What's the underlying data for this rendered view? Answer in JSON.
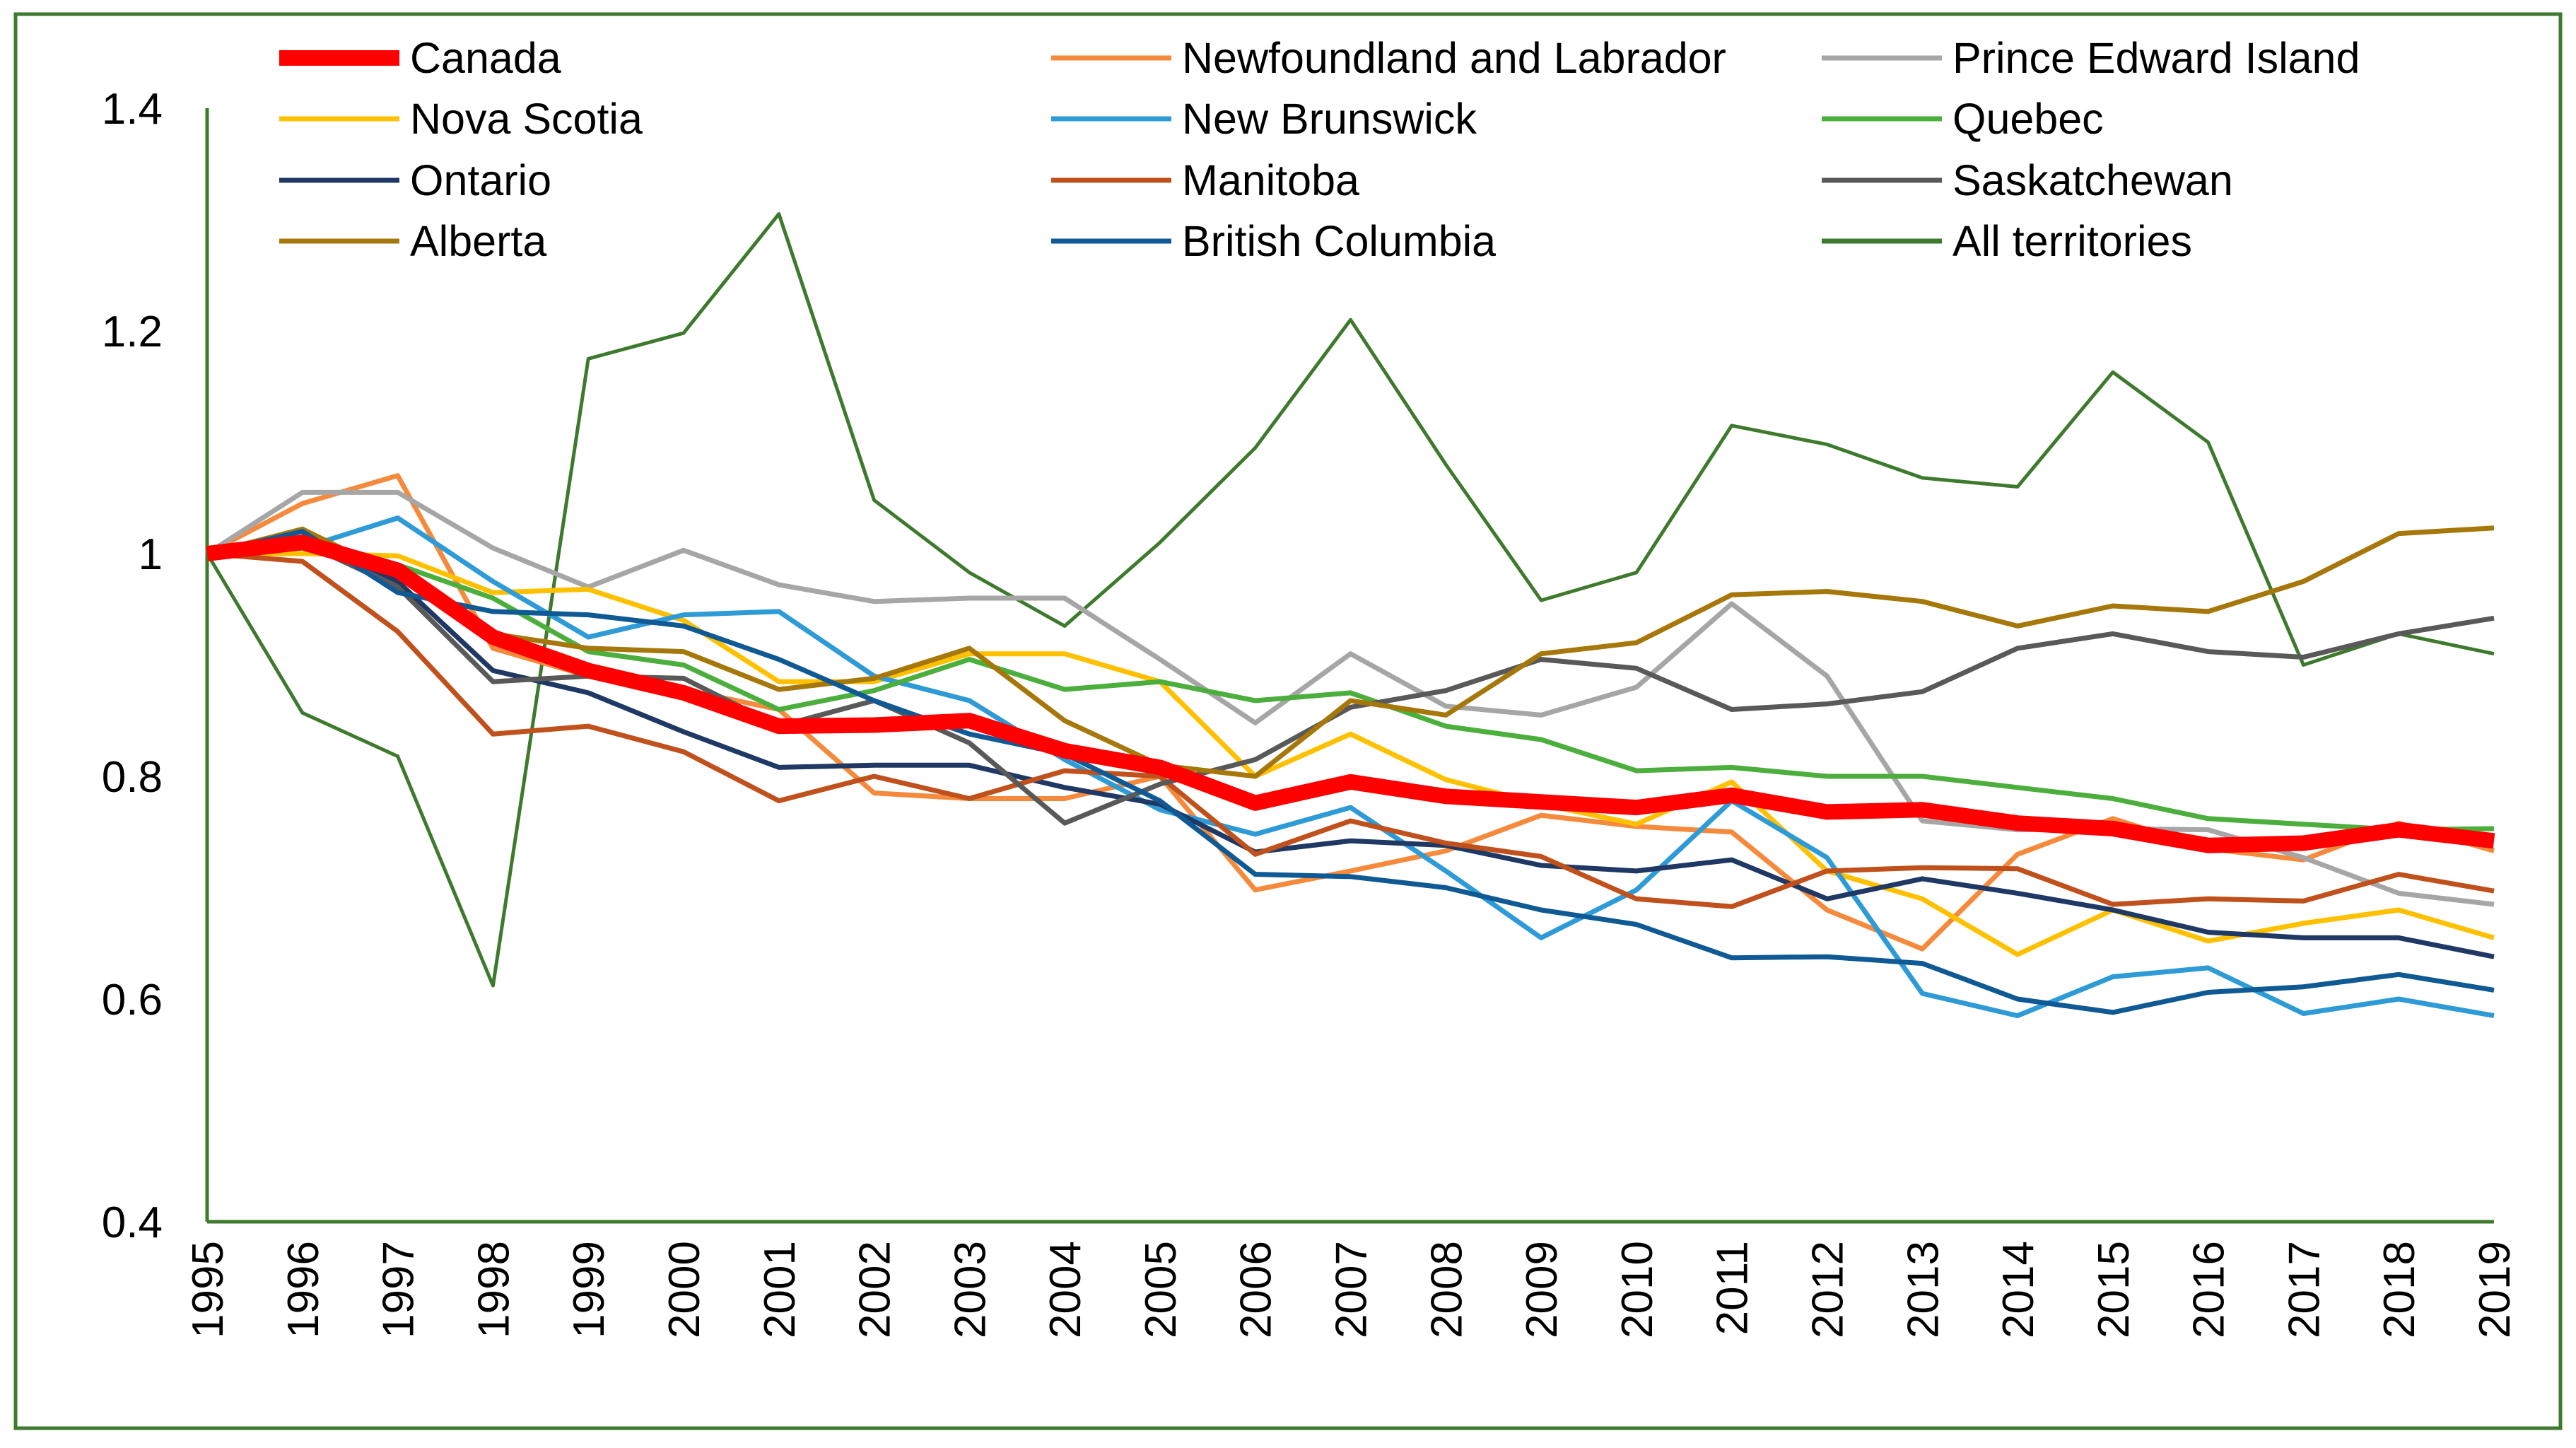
{
  "chart_data": {
    "type": "line",
    "title": "",
    "xlabel": "",
    "ylabel": "",
    "ylim": [
      0.4,
      1.4
    ],
    "yticks": [
      "0.4",
      "0.6",
      "0.8",
      "1",
      "1.2",
      "1.4"
    ],
    "grid": false,
    "legend_position": "top",
    "frame_color": "#3E7A2E",
    "axis_color": "#3E7A2E",
    "x": [
      "1995",
      "1996",
      "1997",
      "1998",
      "1999",
      "2000",
      "2001",
      "2002",
      "2003",
      "2004",
      "2005",
      "2006",
      "2007",
      "2008",
      "2009",
      "2010",
      "2011",
      "2012",
      "2013",
      "2014",
      "2015",
      "2016",
      "2017",
      "2018",
      "2019"
    ],
    "series": [
      {
        "name": "Canada",
        "color": "#FF0000",
        "width": 22,
        "values": [
          1.0,
          1.01,
          0.985,
          0.925,
          0.895,
          0.875,
          0.845,
          0.846,
          0.85,
          0.823,
          0.808,
          0.776,
          0.795,
          0.782,
          0.777,
          0.772,
          0.783,
          0.768,
          0.77,
          0.758,
          0.753,
          0.738,
          0.74,
          0.752,
          0.742
        ]
      },
      {
        "name": "Newfoundland and Labrador",
        "color": "#F58A3C",
        "width": 7,
        "values": [
          1.0,
          1.045,
          1.07,
          0.915,
          0.89,
          0.878,
          0.86,
          0.785,
          0.78,
          0.78,
          0.8,
          0.698,
          0.715,
          0.733,
          0.765,
          0.755,
          0.75,
          0.68,
          0.645,
          0.73,
          0.762,
          0.735,
          0.725,
          0.758,
          0.733
        ]
      },
      {
        "name": "Prince Edward Island",
        "color": "#A6A6A6",
        "width": 7,
        "values": [
          1.0,
          1.055,
          1.055,
          1.005,
          0.97,
          1.003,
          0.972,
          0.957,
          0.96,
          0.96,
          0.905,
          0.848,
          0.91,
          0.863,
          0.855,
          0.88,
          0.955,
          0.89,
          0.76,
          0.752,
          0.753,
          0.752,
          0.727,
          0.695,
          0.685
        ]
      },
      {
        "name": "Nova Scotia",
        "color": "#FFC000",
        "width": 7,
        "values": [
          1.0,
          1.0,
          0.998,
          0.965,
          0.968,
          0.94,
          0.885,
          0.885,
          0.91,
          0.91,
          0.885,
          0.8,
          0.838,
          0.797,
          0.775,
          0.757,
          0.795,
          0.715,
          0.69,
          0.64,
          0.68,
          0.652,
          0.668,
          0.68,
          0.655
        ]
      },
      {
        "name": "New Brunswick",
        "color": "#2E9BD6",
        "width": 7,
        "values": [
          1.0,
          1.005,
          1.032,
          0.975,
          0.925,
          0.945,
          0.948,
          0.89,
          0.868,
          0.815,
          0.77,
          0.748,
          0.772,
          0.715,
          0.655,
          0.698,
          0.778,
          0.727,
          0.605,
          0.585,
          0.62,
          0.628,
          0.587,
          0.6,
          0.585
        ]
      },
      {
        "name": "Quebec",
        "color": "#4CAF3D",
        "width": 7,
        "values": [
          1.0,
          1.005,
          0.99,
          0.96,
          0.912,
          0.9,
          0.86,
          0.877,
          0.905,
          0.878,
          0.885,
          0.868,
          0.875,
          0.845,
          0.833,
          0.805,
          0.808,
          0.8,
          0.8,
          0.79,
          0.78,
          0.762,
          0.757,
          0.752,
          0.753
        ]
      },
      {
        "name": "Ontario",
        "color": "#1F3864",
        "width": 7,
        "values": [
          1.0,
          1.015,
          0.975,
          0.895,
          0.875,
          0.84,
          0.808,
          0.81,
          0.81,
          0.79,
          0.775,
          0.732,
          0.742,
          0.738,
          0.72,
          0.715,
          0.725,
          0.69,
          0.708,
          0.695,
          0.68,
          0.66,
          0.655,
          0.655,
          0.638
        ]
      },
      {
        "name": "Manitoba",
        "color": "#C0501C",
        "width": 7,
        "values": [
          1.0,
          0.993,
          0.93,
          0.838,
          0.845,
          0.822,
          0.778,
          0.8,
          0.78,
          0.805,
          0.8,
          0.73,
          0.76,
          0.74,
          0.728,
          0.69,
          0.683,
          0.715,
          0.718,
          0.717,
          0.685,
          0.69,
          0.688,
          0.712,
          0.697
        ]
      },
      {
        "name": "Saskatchewan",
        "color": "#595959",
        "width": 7,
        "values": [
          1.0,
          1.01,
          0.97,
          0.885,
          0.89,
          0.888,
          0.845,
          0.868,
          0.83,
          0.758,
          0.793,
          0.815,
          0.862,
          0.877,
          0.905,
          0.897,
          0.86,
          0.865,
          0.876,
          0.915,
          0.928,
          0.912,
          0.907,
          0.928,
          0.942
        ]
      },
      {
        "name": "Alberta",
        "color": "#A6780B",
        "width": 7,
        "values": [
          1.0,
          1.022,
          0.98,
          0.928,
          0.915,
          0.912,
          0.878,
          0.888,
          0.915,
          0.85,
          0.81,
          0.8,
          0.868,
          0.855,
          0.91,
          0.92,
          0.963,
          0.966,
          0.957,
          0.935,
          0.953,
          0.948,
          0.975,
          1.018,
          1.023
        ]
      },
      {
        "name": "British Columbia",
        "color": "#0F5A94",
        "width": 7,
        "values": [
          1.0,
          1.02,
          0.965,
          0.948,
          0.945,
          0.935,
          0.905,
          0.868,
          0.838,
          0.82,
          0.778,
          0.712,
          0.71,
          0.7,
          0.68,
          0.667,
          0.637,
          0.638,
          0.632,
          0.6,
          0.588,
          0.606,
          0.611,
          0.622,
          0.608
        ]
      },
      {
        "name": "All territories",
        "color": "#3E7A2E",
        "width": 5,
        "values": [
          1.0,
          0.857,
          0.818,
          0.612,
          1.175,
          1.198,
          1.305,
          1.048,
          0.983,
          0.935,
          1.01,
          1.095,
          1.21,
          1.08,
          0.958,
          0.983,
          1.115,
          1.098,
          1.068,
          1.06,
          1.163,
          1.1,
          0.9,
          0.928,
          0.91
        ]
      }
    ]
  }
}
